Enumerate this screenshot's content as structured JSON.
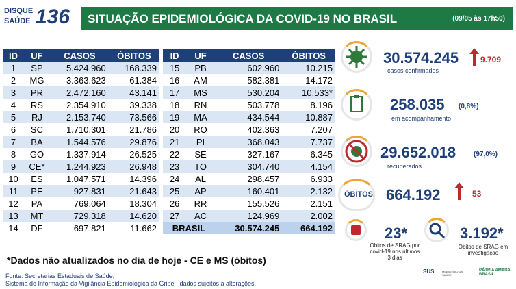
{
  "header": {
    "logo_text": [
      "DISQUE",
      "SAÚDE"
    ],
    "logo_number": "136",
    "title": "SITUAÇÃO EPIDEMIOLÓGICA DA COVID-19 NO BRASIL",
    "timestamp": "(09/05 às 17h50)"
  },
  "table": {
    "columns": [
      "ID",
      "UF",
      "CASOS",
      "ÓBITOS"
    ],
    "rows": [
      [
        "1",
        "SP",
        "5.424.960",
        "168.339"
      ],
      [
        "2",
        "MG",
        "3.363.623",
        "61.384"
      ],
      [
        "3",
        "PR",
        "2.472.160",
        "43.141"
      ],
      [
        "4",
        "RS",
        "2.354.910",
        "39.338"
      ],
      [
        "5",
        "RJ",
        "2.153.740",
        "73.566"
      ],
      [
        "6",
        "SC",
        "1.710.301",
        "21.786"
      ],
      [
        "7",
        "BA",
        "1.544.576",
        "29.876"
      ],
      [
        "8",
        "GO",
        "1.337.914",
        "26.525"
      ],
      [
        "9",
        "CE*",
        "1.244.923",
        "26.948"
      ],
      [
        "10",
        "ES",
        "1.047.571",
        "14.396"
      ],
      [
        "11",
        "PE",
        "927.831",
        "21.643"
      ],
      [
        "12",
        "PA",
        "769.064",
        "18.304"
      ],
      [
        "13",
        "MT",
        "729.318",
        "14.620"
      ],
      [
        "14",
        "DF",
        "697.821",
        "11.662"
      ],
      [
        "15",
        "PB",
        "602.960",
        "10.215"
      ],
      [
        "16",
        "AM",
        "582.381",
        "14.172"
      ],
      [
        "17",
        "MS",
        "530.204",
        "10.533*"
      ],
      [
        "18",
        "RN",
        "503.778",
        "8.196"
      ],
      [
        "19",
        "MA",
        "434.544",
        "10.887"
      ],
      [
        "20",
        "RO",
        "402.363",
        "7.207"
      ],
      [
        "21",
        "PI",
        "368.043",
        "7.737"
      ],
      [
        "22",
        "SE",
        "327.167",
        "6.345"
      ],
      [
        "23",
        "TO",
        "304.740",
        "4.154"
      ],
      [
        "24",
        "AL",
        "298.457",
        "6.933"
      ],
      [
        "25",
        "AP",
        "160.401",
        "2.132"
      ],
      [
        "26",
        "RR",
        "155.526",
        "2.151"
      ],
      [
        "27",
        "AC",
        "124.969",
        "2.002"
      ]
    ],
    "total": [
      "BRASIL",
      "30.574.245",
      "664.192"
    ]
  },
  "panel": {
    "cases": {
      "value": "30.574.245",
      "change": "9.709",
      "label": "casos confirmados"
    },
    "monitoring": {
      "value": "258.035",
      "percent": "(0,8%)",
      "label": "em acompanhamento"
    },
    "recovered": {
      "value": "29.652.018",
      "percent": "(97,0%)",
      "label": "recuperados"
    },
    "deaths": {
      "badge": "ÓBITOS",
      "value": "664.192",
      "change": "53"
    },
    "srag": {
      "value": "23*",
      "label": "Óbitos de SRAG por covid-19 nos últimos 3 dias"
    },
    "investigation": {
      "value": "3.192*",
      "label": "Óbitos de SRAG em investigação"
    }
  },
  "footnote": "*Dados não atualizados no dia de hoje - CE e MS (óbitos)",
  "sources": [
    "Fonte: Secretarias Estaduais de Saúde;",
    "Sistema de Informação da Vigilância Epidemiológica da Gripe - dados sujeitos a alterações."
  ],
  "logos": [
    "SUS",
    "MINISTÉRIO DA SAÚDE",
    "PÁTRIA AMADA BRASIL"
  ]
}
